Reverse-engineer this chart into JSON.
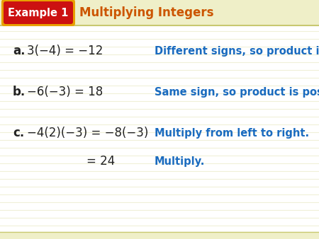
{
  "title_box_text": "Example 1",
  "title_main_text": "Multiplying Integers",
  "title_box_bg": "#cc1111",
  "title_box_border": "#e8a000",
  "title_box_text_color": "#ffffff",
  "title_main_color": "#cc5500",
  "bg_color": "#fafae0",
  "header_bg": "#efefc8",
  "content_bg": "#ffffff",
  "stripe_color": "#f0f0d8",
  "math_color": "#222222",
  "explanation_color": "#1a6bbf",
  "label_color": "#222222",
  "bottom_bar_color": "#efefc8",
  "rows": [
    {
      "label": "a.",
      "math": "3(−4) = −12",
      "explanation": "Different signs, so product is negative."
    },
    {
      "label": "b.",
      "math": "−6(−3) = 18",
      "explanation": "Same sign, so product is positive."
    },
    {
      "label": "c.",
      "math_line1": "−4(2)(−3) = −8(−3)",
      "math_line2": "= 24",
      "explanation_line1": "Multiply from left to right.",
      "explanation_line2": "Multiply."
    }
  ],
  "figsize": [
    4.5,
    3.38
  ],
  "dpi": 100
}
